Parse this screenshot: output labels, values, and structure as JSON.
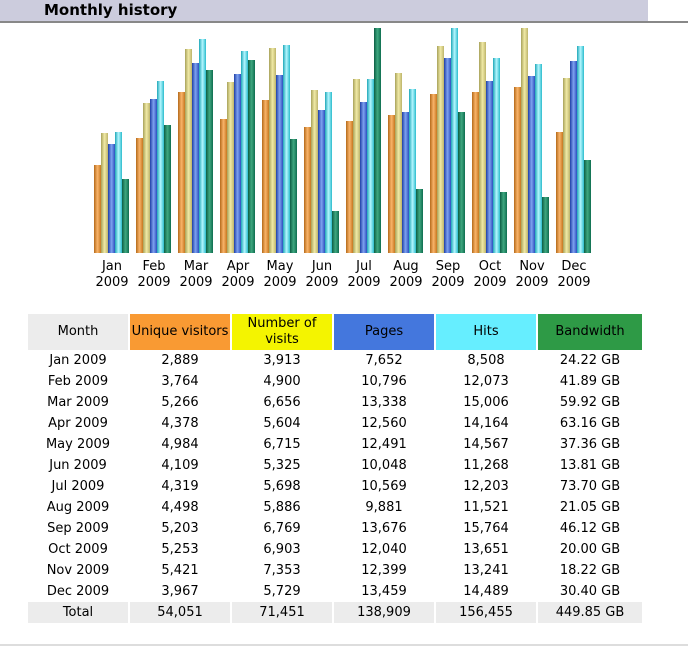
{
  "section_title": "Monthly history",
  "colors": {
    "visitors": "#f99a33",
    "visits": "#f4f400",
    "pages": "#4477dd",
    "hits": "#66eeff",
    "bandwidth": "#2e9a46",
    "header_bg": "#ececec"
  },
  "columns": [
    "Month",
    "Unique visitors",
    "Number of visits",
    "Pages",
    "Hits",
    "Bandwidth"
  ],
  "rows": [
    [
      "Jan 2009",
      "2,889",
      "3,913",
      "7,652",
      "8,508",
      "24.22 GB"
    ],
    [
      "Feb 2009",
      "3,764",
      "4,900",
      "10,796",
      "12,073",
      "41.89 GB"
    ],
    [
      "Mar 2009",
      "5,266",
      "6,656",
      "13,338",
      "15,006",
      "59.92 GB"
    ],
    [
      "Apr 2009",
      "4,378",
      "5,604",
      "12,560",
      "14,164",
      "63.16 GB"
    ],
    [
      "May 2009",
      "4,984",
      "6,715",
      "12,491",
      "14,567",
      "37.36 GB"
    ],
    [
      "Jun 2009",
      "4,109",
      "5,325",
      "10,048",
      "11,268",
      "13.81 GB"
    ],
    [
      "Jul 2009",
      "4,319",
      "5,698",
      "10,569",
      "12,203",
      "73.70 GB"
    ],
    [
      "Aug 2009",
      "4,498",
      "5,886",
      "9,881",
      "11,521",
      "21.05 GB"
    ],
    [
      "Sep 2009",
      "5,203",
      "6,769",
      "13,676",
      "15,764",
      "46.12 GB"
    ],
    [
      "Oct 2009",
      "5,253",
      "6,903",
      "12,040",
      "13,651",
      "20.00 GB"
    ],
    [
      "Nov 2009",
      "5,421",
      "7,353",
      "12,399",
      "13,241",
      "18.22 GB"
    ],
    [
      "Dec 2009",
      "3,967",
      "5,729",
      "13,459",
      "14,489",
      "30.40 GB"
    ]
  ],
  "total": [
    "Total",
    "54,051",
    "71,451",
    "138,909",
    "156,455",
    "449.85 GB"
  ],
  "chart_data": {
    "type": "bar",
    "categories": [
      [
        "Jan",
        "2009"
      ],
      [
        "Feb",
        "2009"
      ],
      [
        "Mar",
        "2009"
      ],
      [
        "Apr",
        "2009"
      ],
      [
        "May",
        "2009"
      ],
      [
        "Jun",
        "2009"
      ],
      [
        "Jul",
        "2009"
      ],
      [
        "Aug",
        "2009"
      ],
      [
        "Sep",
        "2009"
      ],
      [
        "Oct",
        "2009"
      ],
      [
        "Nov",
        "2009"
      ],
      [
        "Dec",
        "2009"
      ]
    ],
    "series": [
      {
        "name": "Unique visitors",
        "key": "visitors",
        "scale": "visits",
        "values": [
          2889,
          3764,
          5266,
          4378,
          4984,
          4109,
          4319,
          4498,
          5203,
          5253,
          5421,
          3967
        ]
      },
      {
        "name": "Number of visits",
        "key": "visits",
        "scale": "visits",
        "values": [
          3913,
          4900,
          6656,
          5604,
          6715,
          5325,
          5698,
          5886,
          6769,
          6903,
          7353,
          5729
        ]
      },
      {
        "name": "Pages",
        "key": "pages",
        "scale": "hits",
        "values": [
          7652,
          10796,
          13338,
          12560,
          12491,
          10048,
          10569,
          9881,
          13676,
          12040,
          12399,
          13459
        ]
      },
      {
        "name": "Hits",
        "key": "hits",
        "scale": "hits",
        "values": [
          8508,
          12073,
          15006,
          14164,
          14567,
          11268,
          12203,
          11521,
          15764,
          13651,
          13241,
          14489
        ]
      },
      {
        "name": "Bandwidth (GB)",
        "key": "bandwidth",
        "scale": "bandwidth",
        "values": [
          24.22,
          41.89,
          59.92,
          63.16,
          37.36,
          13.81,
          73.7,
          21.05,
          46.12,
          20.0,
          18.22,
          30.4
        ]
      }
    ]
  }
}
